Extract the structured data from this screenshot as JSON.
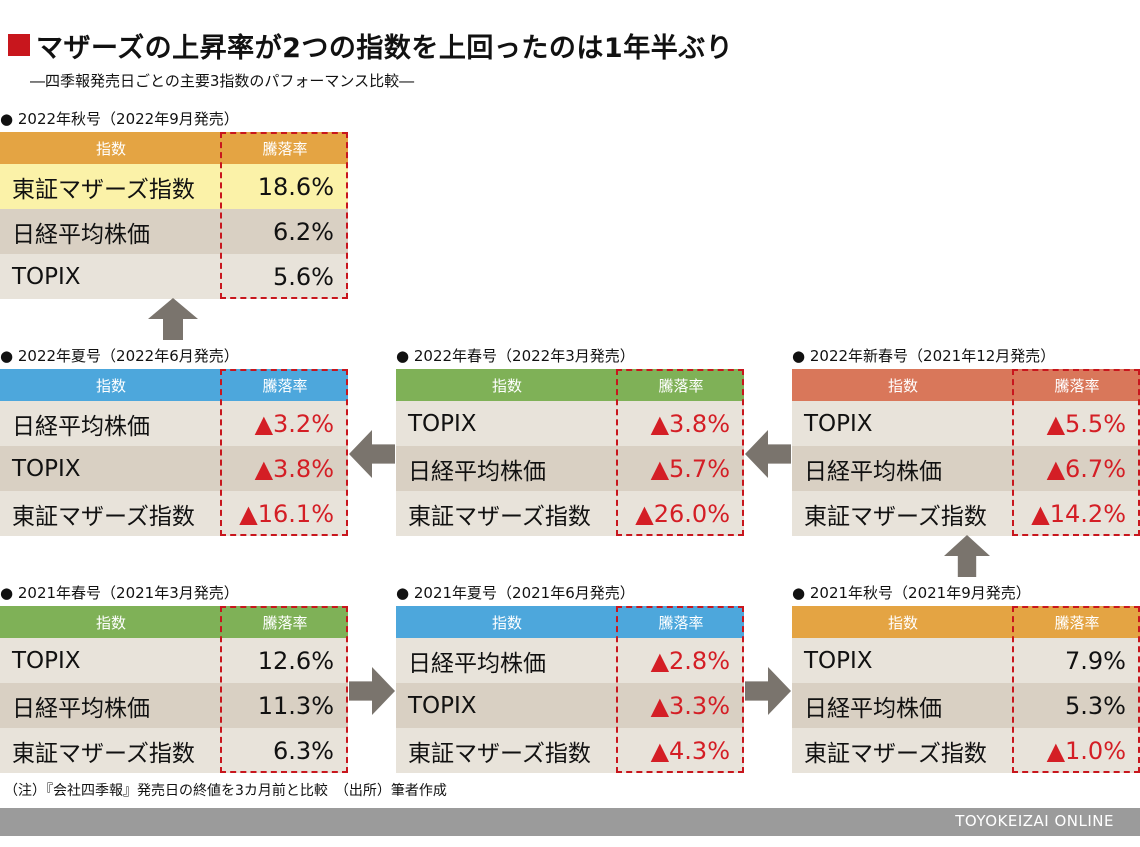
{
  "title": "マザーズの上昇率が2つの指数を上回ったのは1年半ぶり",
  "subtitle": "―四季報発売日ごとの主要3指数のパフォーマンス比較―",
  "note": "（注）『会社四季報』発売日の終値を3カ月前と比較　（出所）筆者作成",
  "footer": "TOYOKEIZAI ONLINE",
  "colors": {
    "accent_red": "#c8161d",
    "negative_red": "#d41e25",
    "arrow_gray": "#7a746d"
  },
  "chart_data": {
    "type": "table",
    "columns": [
      "指数",
      "騰落率"
    ],
    "panels": [
      {
        "id": "2022-autumn",
        "label": "● 2022年秋号（2022年9月発売）",
        "header_color": "#e4a443",
        "highlight_first": true,
        "rows": [
          {
            "index": "東証マザーズ指数",
            "change": "18.6%"
          },
          {
            "index": "日経平均株価",
            "change": "6.2%"
          },
          {
            "index": "TOPIX",
            "change": "5.6%"
          }
        ]
      },
      {
        "id": "2022-summer",
        "label": "● 2022年夏号（2022年6月発売）",
        "header_color": "#4da7dc",
        "rows": [
          {
            "index": "日経平均株価",
            "change": "▲3.2%"
          },
          {
            "index": "TOPIX",
            "change": "▲3.8%"
          },
          {
            "index": "東証マザーズ指数",
            "change": "▲16.1%"
          }
        ]
      },
      {
        "id": "2022-spring",
        "label": "● 2022年春号（2022年3月発売）",
        "header_color": "#7fb157",
        "rows": [
          {
            "index": "TOPIX",
            "change": "▲3.8%"
          },
          {
            "index": "日経平均株価",
            "change": "▲5.7%"
          },
          {
            "index": "東証マザーズ指数",
            "change": "▲26.0%"
          }
        ]
      },
      {
        "id": "2022-newyear",
        "label": "● 2022年新春号（2021年12月発売）",
        "header_color": "#d9775a",
        "rows": [
          {
            "index": "TOPIX",
            "change": "▲5.5%"
          },
          {
            "index": "日経平均株価",
            "change": "▲6.7%"
          },
          {
            "index": "東証マザーズ指数",
            "change": "▲14.2%"
          }
        ]
      },
      {
        "id": "2021-spring",
        "label": "● 2021年春号（2021年3月発売）",
        "header_color": "#7fb157",
        "rows": [
          {
            "index": "TOPIX",
            "change": "12.6%"
          },
          {
            "index": "日経平均株価",
            "change": "11.3%"
          },
          {
            "index": "東証マザーズ指数",
            "change": "6.3%"
          }
        ]
      },
      {
        "id": "2021-summer",
        "label": "● 2021年夏号（2021年6月発売）",
        "header_color": "#4da7dc",
        "rows": [
          {
            "index": "日経平均株価",
            "change": "▲2.8%"
          },
          {
            "index": "TOPIX",
            "change": "▲3.3%"
          },
          {
            "index": "東証マザーズ指数",
            "change": "▲4.3%"
          }
        ]
      },
      {
        "id": "2021-autumn",
        "label": "● 2021年秋号（2021年9月発売）",
        "header_color": "#e4a443",
        "rows": [
          {
            "index": "TOPIX",
            "change": "7.9%"
          },
          {
            "index": "日経平均株価",
            "change": "5.3%"
          },
          {
            "index": "東証マザーズ指数",
            "change": "▲1.0%"
          }
        ]
      }
    ],
    "flow": [
      {
        "from": "2021-spring",
        "to": "2021-summer",
        "direction": "right"
      },
      {
        "from": "2021-summer",
        "to": "2021-autumn",
        "direction": "right"
      },
      {
        "from": "2021-autumn",
        "to": "2022-newyear",
        "direction": "up"
      },
      {
        "from": "2022-newyear",
        "to": "2022-spring",
        "direction": "left"
      },
      {
        "from": "2022-spring",
        "to": "2022-summer",
        "direction": "left"
      },
      {
        "from": "2022-summer",
        "to": "2022-autumn",
        "direction": "up"
      }
    ]
  }
}
